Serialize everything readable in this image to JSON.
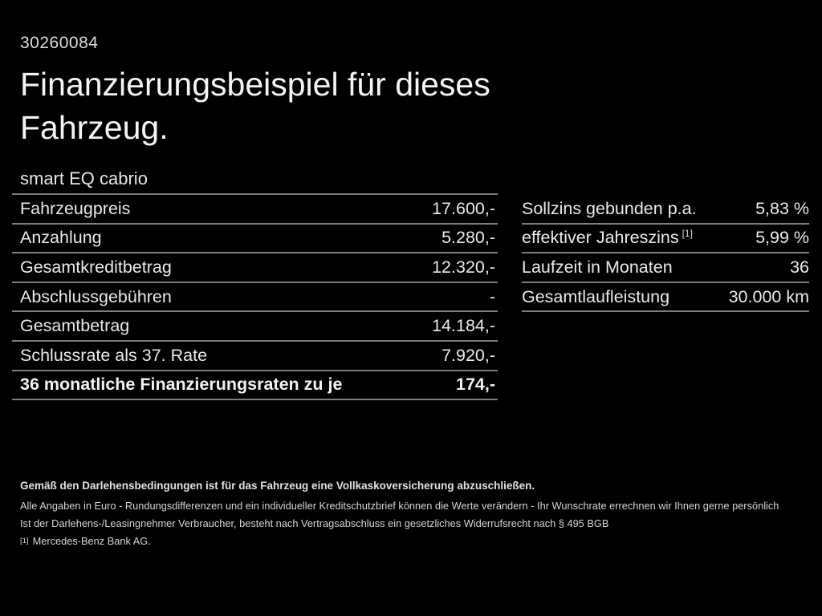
{
  "page": {
    "background": "#000000",
    "text_color": "#ececec",
    "divider_color": "#7e7e7e"
  },
  "header": {
    "reference_number": "30260084",
    "title": "Finanzierungsbeispiel für dieses Fahrzeug.",
    "subtitle": "smart EQ cabrio"
  },
  "financing_table": {
    "rows": [
      {
        "label": "Fahrzeugpreis",
        "value": "17.600,-"
      },
      {
        "label": "Anzahlung",
        "value": "5.280,-"
      },
      {
        "label": "Gesamtkreditbetrag",
        "value": "12.320,-"
      },
      {
        "label": "Abschlussgebühren",
        "value": "-"
      },
      {
        "label": "Gesamtbetrag",
        "value": "14.184,-"
      },
      {
        "label": "Schlussrate als 37. Rate",
        "value": "7.920,-"
      },
      {
        "label": "36 monatliche Finanzierungsraten zu je",
        "value": "174,-"
      }
    ]
  },
  "conditions_table": {
    "rows": [
      {
        "label": "Sollzins gebunden p.a.",
        "superscript": "",
        "value": "5,83 %"
      },
      {
        "label": "effektiver Jahreszins",
        "superscript": "[1]",
        "value": "5,99 %"
      },
      {
        "label": "Laufzeit in Monaten",
        "superscript": "",
        "value": "36"
      },
      {
        "label": "Gesamtlaufleistung",
        "superscript": "",
        "value": "30.000 km"
      }
    ]
  },
  "footnotes": {
    "insurance_note": "Gemäß den Darlehensbedingungen ist für das Fahrzeug eine Vollkaskoversicherung abzuschließen.",
    "disclaimer_1": "Alle Angaben in Euro - Rundungsdifferenzen und ein individueller Kreditschutzbrief können die Werte verändern - Ihr Wunschrate errechnen wir Ihnen gerne persönlich",
    "disclaimer_2": "Ist der Darlehens-/Leasingnehmer Verbraucher, besteht nach Vertragsabschluss ein gesetzliches Widerrufsrecht nach § 495 BGB",
    "bank_marker": "[1]",
    "bank_note": "Mercedes-Benz Bank AG."
  }
}
